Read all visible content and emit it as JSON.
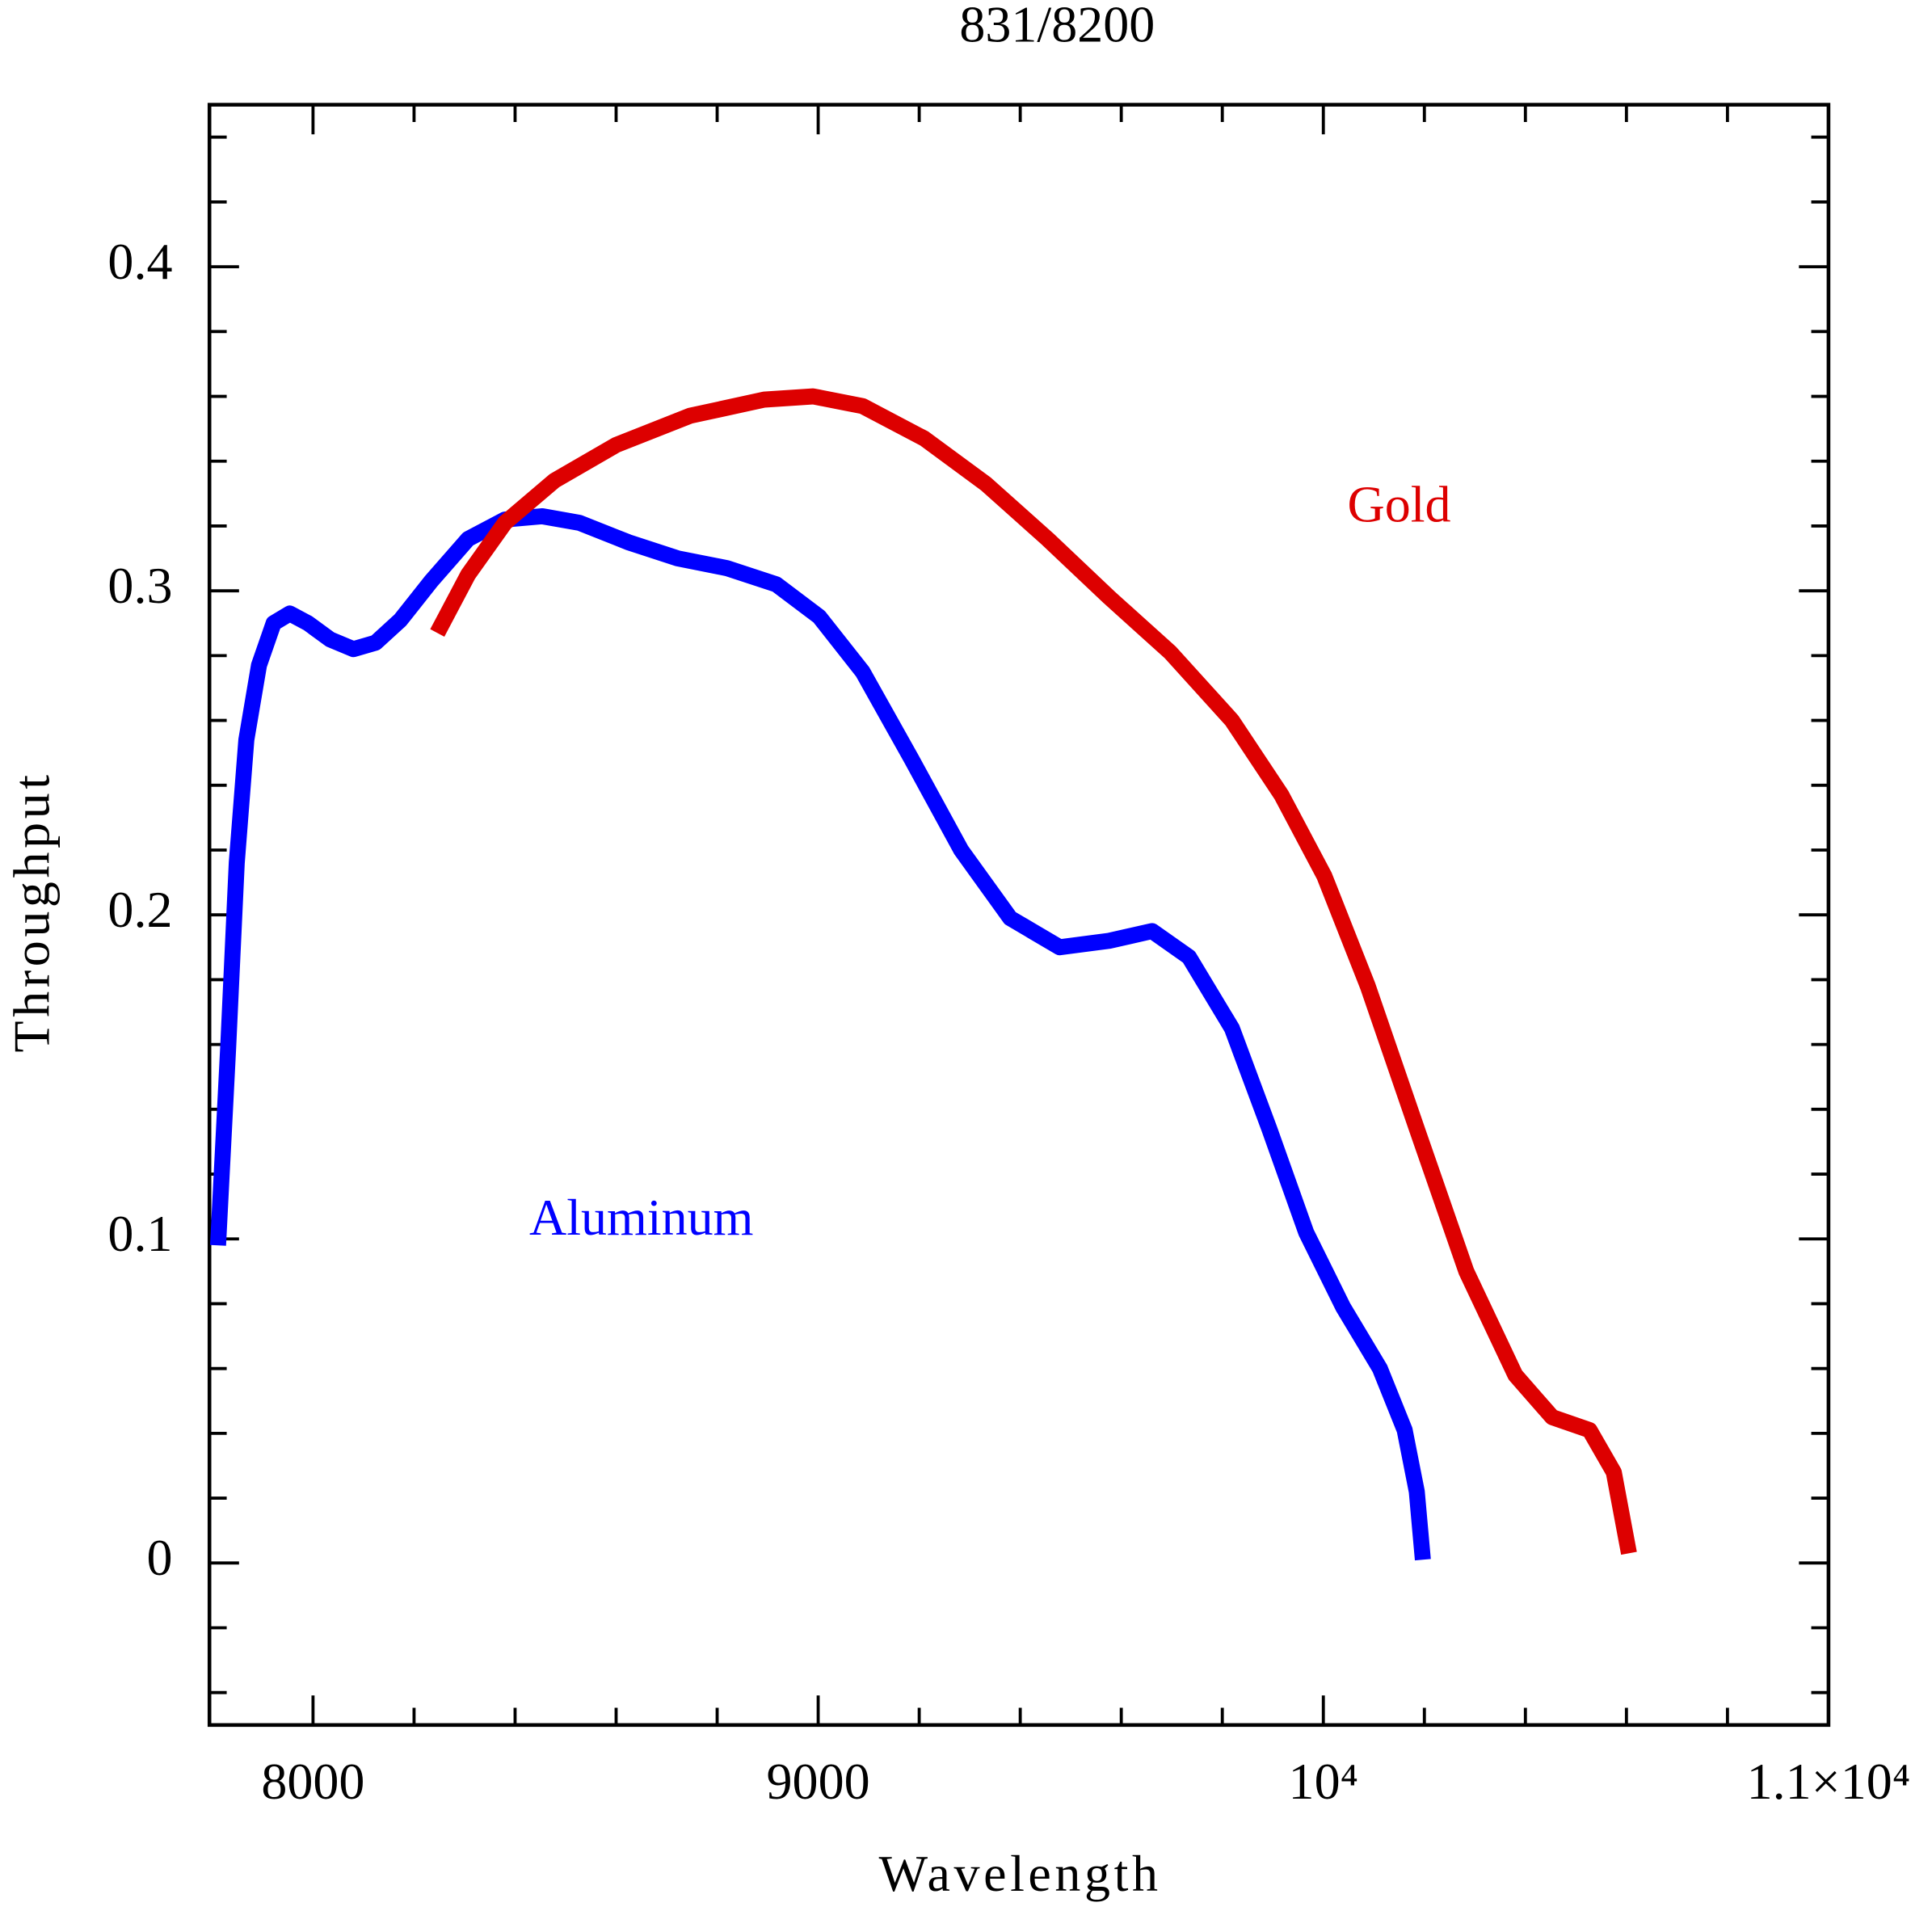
{
  "chart_data": {
    "type": "line",
    "title": "831/8200",
    "x_label": "Wavelength",
    "y_label": "Throughput",
    "xlim": [
      7795,
      11000
    ],
    "ylim": [
      -0.05,
      0.45
    ],
    "xticks": [
      8000,
      9000,
      {
        "value": 10000,
        "label": "10⁴"
      },
      {
        "value": 11000,
        "label": "1.1×10⁴"
      }
    ],
    "xminorticks": [
      8200,
      8400,
      8600,
      8800,
      9200,
      9400,
      9600,
      9800,
      10200,
      10400,
      10600,
      10800
    ],
    "yticks": [
      0,
      0.1,
      0.2,
      0.3,
      0.4
    ],
    "yminorticks": [
      -0.04,
      -0.02,
      0.02,
      0.04,
      0.06,
      0.08,
      0.12,
      0.14,
      0.16,
      0.18,
      0.22,
      0.24,
      0.26,
      0.28,
      0.32,
      0.34,
      0.36,
      0.38,
      0.42,
      0.44
    ],
    "series": [
      {
        "name": "Aluminum",
        "color": "#0000ff",
        "x": [
          7812,
          7832,
          7849,
          7868,
          7893,
          7922,
          7954,
          7990,
          8034,
          8080,
          8124,
          8173,
          8234,
          8307,
          8380,
          8454,
          8527,
          8624,
          8722,
          8819,
          8917,
          9002,
          9088,
          9185,
          9283,
          9380,
          9478,
          9576,
          9661,
          9734,
          9819,
          9893,
          9966,
          10039,
          10112,
          10161,
          10185,
          10197
        ],
        "values": [
          0.098,
          0.159,
          0.216,
          0.254,
          0.277,
          0.29,
          0.293,
          0.29,
          0.285,
          0.282,
          0.284,
          0.291,
          0.303,
          0.316,
          0.322,
          0.323,
          0.321,
          0.315,
          0.31,
          0.307,
          0.302,
          0.292,
          0.275,
          0.248,
          0.22,
          0.199,
          0.19,
          0.192,
          0.195,
          0.187,
          0.165,
          0.134,
          0.102,
          0.079,
          0.06,
          0.041,
          0.022,
          0.001
        ]
      },
      {
        "name": "Gold",
        "color": "#dd0000",
        "x": [
          8246,
          8307,
          8380,
          8478,
          8600,
          8746,
          8893,
          8990,
          9088,
          9210,
          9332,
          9454,
          9576,
          9697,
          9819,
          9917,
          10002,
          10088,
          10185,
          10283,
          10380,
          10453,
          10527,
          10575,
          10605
        ],
        "values": [
          0.287,
          0.305,
          0.321,
          0.334,
          0.345,
          0.354,
          0.359,
          0.36,
          0.357,
          0.347,
          0.333,
          0.316,
          0.298,
          0.281,
          0.26,
          0.237,
          0.212,
          0.178,
          0.134,
          0.09,
          0.058,
          0.045,
          0.041,
          0.028,
          0.003
        ]
      }
    ],
    "annotations": [
      {
        "text": "Aluminum",
        "x": 8650,
        "y": 0.105,
        "color": "#0000ff"
      },
      {
        "text": "Gold",
        "x": 10150,
        "y": 0.325,
        "color": "#dd0000"
      }
    ]
  }
}
